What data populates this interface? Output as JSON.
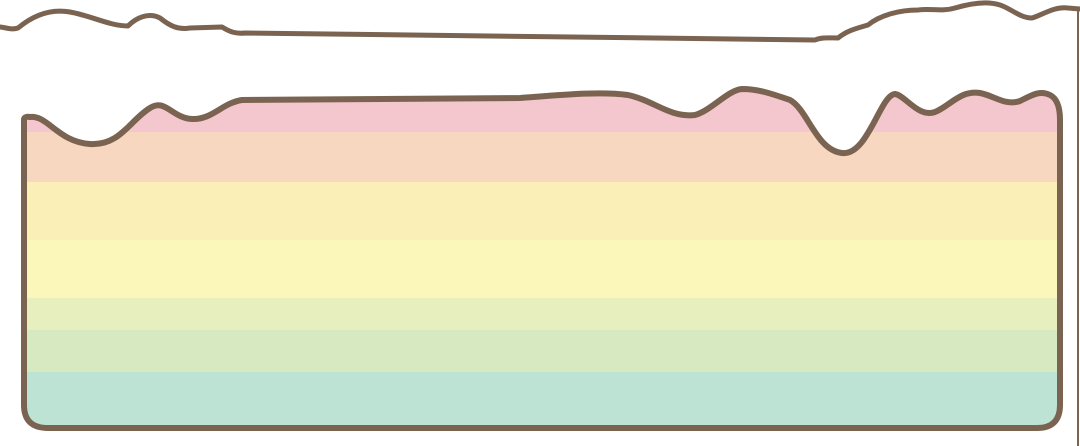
{
  "scene": {
    "kind": "rainbow-layer-panel",
    "colors": {
      "outline": "#7a6350",
      "background": "#ffffff",
      "bands": [
        "#f4c7cf",
        "#f8d7c0",
        "#fbefb8",
        "#fbf7bb",
        "#e7efbe",
        "#d7e9c1",
        "#bde3d4"
      ]
    }
  }
}
